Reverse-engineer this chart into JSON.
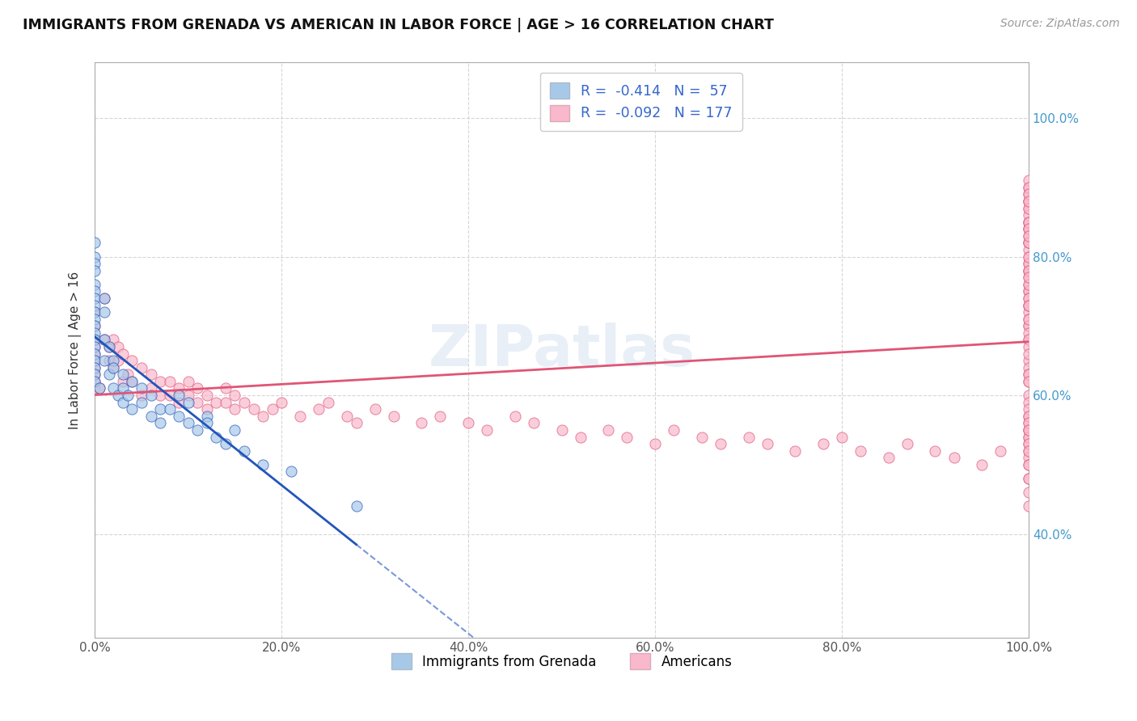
{
  "title": "IMMIGRANTS FROM GRENADA VS AMERICAN IN LABOR FORCE | AGE > 16 CORRELATION CHART",
  "source_text": "Source: ZipAtlas.com",
  "ylabel": "In Labor Force | Age > 16",
  "legend_label1": "Immigrants from Grenada",
  "legend_label2": "Americans",
  "r1": "-0.414",
  "n1": "57",
  "r2": "-0.092",
  "n2": "177",
  "color1": "#a8c8e8",
  "color2": "#f9b8cc",
  "line_color1": "#2255bb",
  "line_color2": "#e05575",
  "xmin": 0.0,
  "xmax": 1.0,
  "ymin": 0.25,
  "ymax": 1.08,
  "x_tick_labels": [
    "0.0%",
    "20.0%",
    "40.0%",
    "60.0%",
    "80.0%",
    "100.0%"
  ],
  "x_tick_vals": [
    0.0,
    0.2,
    0.4,
    0.6,
    0.8,
    1.0
  ],
  "y_tick_labels": [
    "40.0%",
    "60.0%",
    "80.0%",
    "100.0%"
  ],
  "y_tick_vals": [
    0.4,
    0.6,
    0.8,
    1.0
  ],
  "grenada_x": [
    0.0,
    0.0,
    0.0,
    0.0,
    0.0,
    0.0,
    0.0,
    0.0,
    0.0,
    0.0,
    0.0,
    0.0,
    0.0,
    0.0,
    0.0,
    0.0,
    0.0,
    0.0,
    0.0,
    0.005,
    0.01,
    0.01,
    0.01,
    0.01,
    0.015,
    0.015,
    0.02,
    0.02,
    0.02,
    0.025,
    0.03,
    0.03,
    0.03,
    0.035,
    0.04,
    0.04,
    0.05,
    0.05,
    0.06,
    0.06,
    0.07,
    0.07,
    0.08,
    0.09,
    0.09,
    0.1,
    0.1,
    0.11,
    0.12,
    0.12,
    0.13,
    0.14,
    0.15,
    0.16,
    0.18,
    0.21,
    0.28
  ],
  "grenada_y": [
    0.82,
    0.8,
    0.79,
    0.78,
    0.76,
    0.75,
    0.74,
    0.73,
    0.72,
    0.71,
    0.7,
    0.69,
    0.68,
    0.67,
    0.66,
    0.65,
    0.64,
    0.63,
    0.62,
    0.61,
    0.74,
    0.72,
    0.68,
    0.65,
    0.67,
    0.63,
    0.65,
    0.64,
    0.61,
    0.6,
    0.63,
    0.61,
    0.59,
    0.6,
    0.62,
    0.58,
    0.61,
    0.59,
    0.6,
    0.57,
    0.58,
    0.56,
    0.58,
    0.6,
    0.57,
    0.56,
    0.59,
    0.55,
    0.57,
    0.56,
    0.54,
    0.53,
    0.55,
    0.52,
    0.5,
    0.49,
    0.44
  ],
  "american_x": [
    0.0,
    0.0,
    0.0,
    0.0,
    0.0,
    0.0,
    0.0,
    0.0,
    0.0,
    0.0,
    0.005,
    0.01,
    0.01,
    0.015,
    0.015,
    0.02,
    0.02,
    0.025,
    0.025,
    0.03,
    0.03,
    0.035,
    0.04,
    0.04,
    0.05,
    0.05,
    0.06,
    0.06,
    0.07,
    0.07,
    0.08,
    0.08,
    0.09,
    0.09,
    0.1,
    0.1,
    0.11,
    0.11,
    0.12,
    0.12,
    0.13,
    0.14,
    0.14,
    0.15,
    0.15,
    0.16,
    0.17,
    0.18,
    0.19,
    0.2,
    0.22,
    0.24,
    0.25,
    0.27,
    0.28,
    0.3,
    0.32,
    0.35,
    0.37,
    0.4,
    0.42,
    0.45,
    0.47,
    0.5,
    0.52,
    0.55,
    0.57,
    0.6,
    0.62,
    0.65,
    0.67,
    0.7,
    0.72,
    0.75,
    0.78,
    0.8,
    0.82,
    0.85,
    0.87,
    0.9,
    0.92,
    0.95,
    0.97,
    1.0,
    1.0,
    1.0,
    1.0,
    1.0,
    1.0,
    1.0,
    1.0,
    1.0,
    1.0,
    1.0,
    1.0,
    1.0,
    1.0,
    1.0,
    1.0,
    1.0,
    1.0,
    1.0,
    1.0,
    1.0,
    1.0,
    1.0,
    1.0,
    1.0,
    1.0,
    1.0,
    1.0,
    1.0,
    1.0,
    1.0,
    1.0,
    1.0,
    1.0,
    1.0,
    1.0,
    1.0,
    1.0,
    1.0,
    1.0,
    1.0,
    1.0,
    1.0,
    1.0,
    1.0,
    1.0,
    1.0,
    1.0,
    1.0,
    1.0,
    1.0,
    1.0,
    1.0,
    1.0,
    1.0,
    1.0,
    1.0,
    1.0,
    1.0,
    1.0,
    1.0,
    1.0,
    1.0,
    1.0,
    1.0,
    1.0,
    1.0,
    1.0,
    1.0,
    1.0,
    1.0,
    1.0,
    1.0,
    1.0,
    1.0,
    1.0,
    1.0,
    1.0,
    1.0,
    1.0,
    1.0,
    1.0,
    1.0,
    1.0,
    1.0
  ],
  "american_y": [
    0.72,
    0.7,
    0.68,
    0.67,
    0.66,
    0.65,
    0.64,
    0.63,
    0.62,
    0.61,
    0.61,
    0.74,
    0.68,
    0.67,
    0.65,
    0.68,
    0.64,
    0.67,
    0.65,
    0.66,
    0.62,
    0.63,
    0.65,
    0.62,
    0.64,
    0.6,
    0.63,
    0.61,
    0.62,
    0.6,
    0.62,
    0.6,
    0.61,
    0.59,
    0.62,
    0.6,
    0.61,
    0.59,
    0.6,
    0.58,
    0.59,
    0.61,
    0.59,
    0.6,
    0.58,
    0.59,
    0.58,
    0.57,
    0.58,
    0.59,
    0.57,
    0.58,
    0.59,
    0.57,
    0.56,
    0.58,
    0.57,
    0.56,
    0.57,
    0.56,
    0.55,
    0.57,
    0.56,
    0.55,
    0.54,
    0.55,
    0.54,
    0.53,
    0.55,
    0.54,
    0.53,
    0.54,
    0.53,
    0.52,
    0.53,
    0.54,
    0.52,
    0.51,
    0.53,
    0.52,
    0.51,
    0.5,
    0.52,
    0.73,
    0.72,
    0.71,
    0.7,
    0.68,
    0.84,
    0.82,
    0.81,
    0.8,
    0.79,
    0.78,
    0.77,
    0.76,
    0.75,
    0.85,
    0.84,
    0.83,
    0.82,
    0.57,
    0.88,
    0.87,
    0.86,
    0.85,
    0.56,
    0.55,
    0.54,
    0.53,
    0.52,
    0.51,
    0.5,
    0.75,
    0.74,
    0.48,
    0.78,
    0.76,
    0.74,
    0.73,
    0.89,
    0.88,
    0.87,
    0.9,
    0.65,
    0.64,
    0.63,
    0.62,
    0.7,
    0.69,
    0.68,
    0.55,
    0.54,
    0.53,
    0.52,
    0.46,
    0.44,
    0.79,
    0.78,
    0.77,
    0.8,
    0.82,
    0.6,
    0.59,
    0.58,
    0.73,
    0.71,
    0.91,
    0.9,
    0.89,
    0.88,
    0.85,
    0.84,
    0.83,
    0.5,
    0.48,
    0.67,
    0.66,
    0.63,
    0.62,
    0.57,
    0.56,
    0.55
  ]
}
